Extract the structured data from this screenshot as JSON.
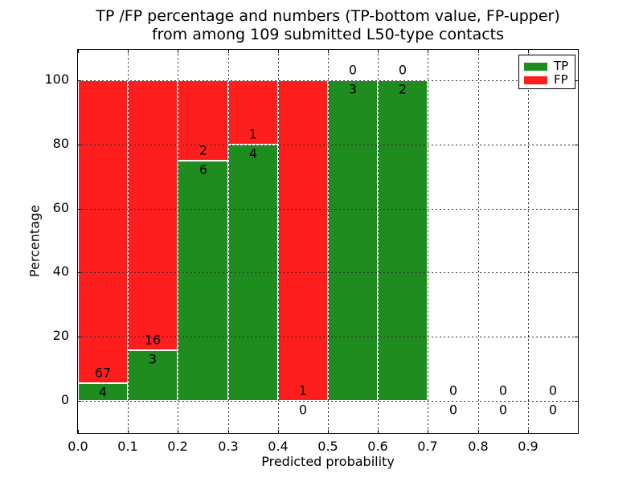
{
  "chart_data": {
    "type": "bar",
    "stacked": true,
    "title_line1": "TP /FP percentage and numbers (TP-bottom value, FP-upper)",
    "title_line2": "from among 109 submitted L50-type contacts",
    "xlabel": "Predicted probability",
    "ylabel": "Percentage",
    "xlim": [
      0.0,
      1.0
    ],
    "ylim": [
      -10,
      110
    ],
    "x_ticks": [
      "0.0",
      "0.1",
      "0.2",
      "0.3",
      "0.4",
      "0.5",
      "0.6",
      "0.7",
      "0.8",
      "0.9"
    ],
    "y_ticks": [
      0,
      20,
      40,
      60,
      80,
      100
    ],
    "grid": true,
    "legend_position": "upper right",
    "legend": [
      {
        "label": "TP",
        "color": "#1e8c1e"
      },
      {
        "label": "FP",
        "color": "#fe1e1e"
      }
    ],
    "total_submitted": 109,
    "bins": [
      {
        "x_start": 0.0,
        "x_end": 0.1,
        "tp": 4,
        "fp": 67,
        "tp_pct": 5.6,
        "fp_pct": 94.4
      },
      {
        "x_start": 0.1,
        "x_end": 0.2,
        "tp": 3,
        "fp": 16,
        "tp_pct": 15.8,
        "fp_pct": 84.2
      },
      {
        "x_start": 0.2,
        "x_end": 0.3,
        "tp": 6,
        "fp": 2,
        "tp_pct": 75.0,
        "fp_pct": 25.0
      },
      {
        "x_start": 0.3,
        "x_end": 0.4,
        "tp": 4,
        "fp": 1,
        "tp_pct": 80.0,
        "fp_pct": 20.0
      },
      {
        "x_start": 0.4,
        "x_end": 0.5,
        "tp": 0,
        "fp": 1,
        "tp_pct": 0.0,
        "fp_pct": 100.0
      },
      {
        "x_start": 0.5,
        "x_end": 0.6,
        "tp": 3,
        "fp": 0,
        "tp_pct": 100.0,
        "fp_pct": 0.0
      },
      {
        "x_start": 0.6,
        "x_end": 0.7,
        "tp": 2,
        "fp": 0,
        "tp_pct": 100.0,
        "fp_pct": 0.0
      },
      {
        "x_start": 0.7,
        "x_end": 0.8,
        "tp": 0,
        "fp": 0,
        "tp_pct": null,
        "fp_pct": null
      },
      {
        "x_start": 0.8,
        "x_end": 0.9,
        "tp": 0,
        "fp": 0,
        "tp_pct": null,
        "fp_pct": null
      },
      {
        "x_start": 0.9,
        "x_end": 1.0,
        "tp": 0,
        "fp": 0,
        "tp_pct": null,
        "fp_pct": null
      }
    ]
  },
  "colors": {
    "tp_green": "#1e8c1e",
    "fp_red": "#fe1e1e",
    "grid": "#2b2b2b",
    "frame": "#000000",
    "background": "#ffffff",
    "bar_edge": "#ffffff",
    "text": "#000000"
  }
}
